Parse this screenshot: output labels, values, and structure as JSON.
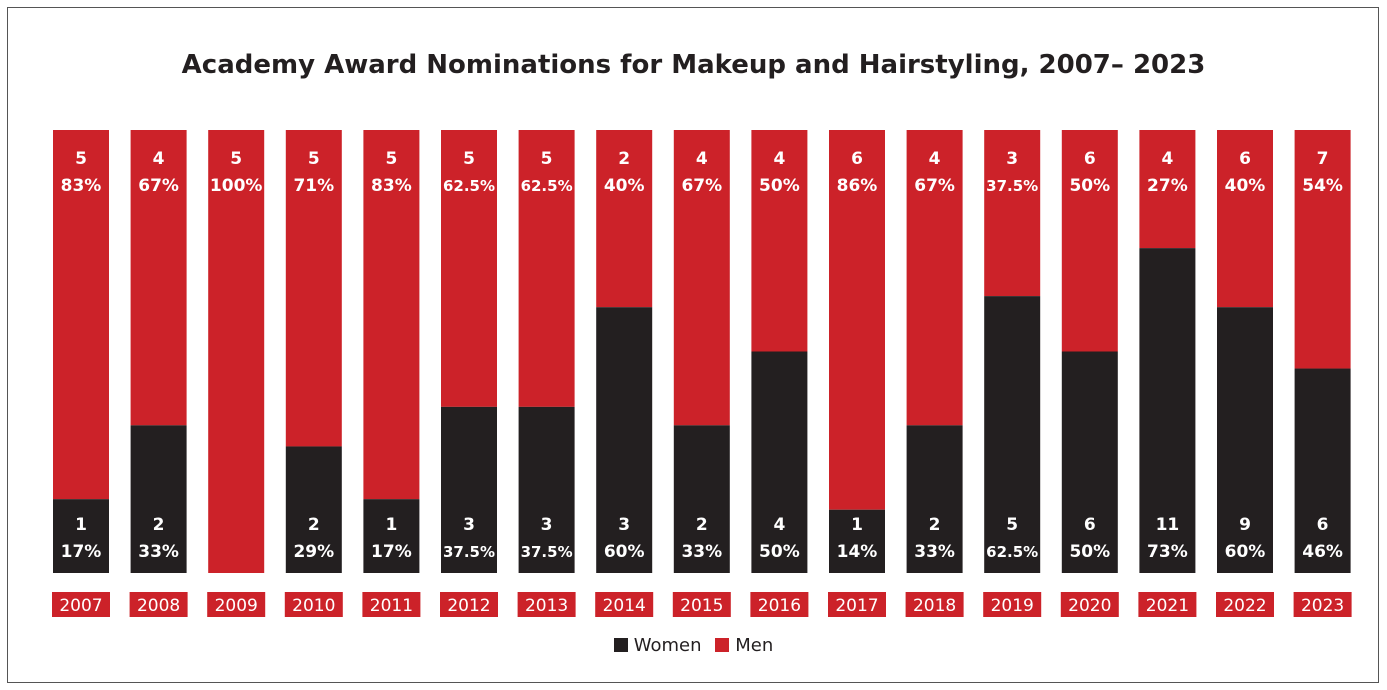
{
  "chart_data": {
    "type": "bar",
    "stacked": "percent",
    "title": "Academy Award Nominations for Makeup and Hairstyling, 2007– 2023",
    "categories": [
      "2007",
      "2008",
      "2009",
      "2010",
      "2011",
      "2012",
      "2013",
      "2014",
      "2015",
      "2016",
      "2017",
      "2018",
      "2019",
      "2020",
      "2021",
      "2022",
      "2023"
    ],
    "series": [
      {
        "name": "Women",
        "color": "#231f20",
        "values": [
          1,
          2,
          0,
          2,
          1,
          3,
          3,
          3,
          2,
          4,
          1,
          2,
          5,
          6,
          11,
          9,
          6
        ],
        "percent_labels": [
          "17%",
          "33%",
          "",
          "29%",
          "17%",
          "37.5%",
          "37.5%",
          "60%",
          "33%",
          "50%",
          "14%",
          "33%",
          "62.5%",
          "50%",
          "73%",
          "60%",
          "46%"
        ]
      },
      {
        "name": "Men",
        "color": "#cc2229",
        "values": [
          5,
          4,
          5,
          5,
          5,
          5,
          5,
          2,
          4,
          4,
          6,
          4,
          3,
          6,
          4,
          6,
          7
        ],
        "percent_labels": [
          "83%",
          "67%",
          "100%",
          "71%",
          "83%",
          "62.5%",
          "62.5%",
          "40%",
          "67%",
          "50%",
          "86%",
          "67%",
          "37.5%",
          "50%",
          "27%",
          "40%",
          "54%"
        ]
      }
    ],
    "legend": {
      "placement": "bottom-center",
      "items": [
        "Women",
        "Men"
      ]
    },
    "grid": false
  }
}
